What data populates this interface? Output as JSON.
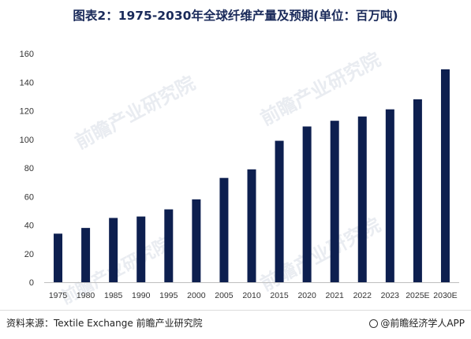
{
  "chart_data": {
    "type": "bar",
    "title": "图表2：1975-2030年全球纤维产量及预期(单位：百万吨)",
    "categories": [
      "1975",
      "1980",
      "1985",
      "1990",
      "1995",
      "2000",
      "2005",
      "2010",
      "2015",
      "2020",
      "2021",
      "2022",
      "2023",
      "2025E",
      "2030E"
    ],
    "values": [
      34,
      38,
      45,
      46,
      51,
      58,
      73,
      79,
      99,
      109,
      113,
      116,
      121,
      128,
      149
    ],
    "yticks": [
      0,
      20,
      40,
      60,
      80,
      100,
      120,
      140,
      160
    ],
    "ylim": [
      0,
      160
    ],
    "grid": false,
    "legend": "none",
    "bar_color": "#0d1f4f"
  },
  "watermark": {
    "text": "前瞻产业研究院"
  },
  "footer": {
    "source": "资料来源：Textile Exchange 前瞻产业研究院",
    "app": "@前瞻经济学人APP",
    "app_icon": "circle-logo-icon"
  }
}
